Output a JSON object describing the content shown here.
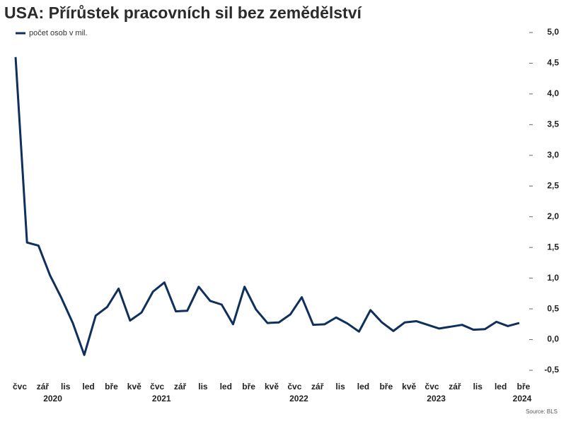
{
  "chart_data": {
    "type": "line",
    "title": "USA: Přírůstek pracovních sil bez zemědělství",
    "source": "Source: BLS",
    "categories": [
      "čvc",
      null,
      "zář",
      null,
      "lis",
      null,
      "led",
      null,
      "bře",
      null,
      "kvě",
      null,
      "čvc",
      null,
      "zář",
      null,
      "lis",
      null,
      "led",
      null,
      "bře",
      null,
      "kvě",
      null,
      "čvc",
      null,
      "zář",
      null,
      "lis",
      null,
      "led",
      null,
      "bře",
      null,
      "kvě",
      null,
      "čvc",
      null,
      "zář",
      null,
      "lis",
      null,
      "led",
      null,
      "bře"
    ],
    "year_groups": [
      {
        "label": "2020",
        "category": 3
      },
      {
        "label": "2021",
        "category": 12.5
      },
      {
        "label": "2022",
        "category": 24.5
      },
      {
        "label": "2023",
        "category": 36.5
      },
      {
        "label": "2024",
        "category": 44
      }
    ],
    "series": [
      {
        "name": "počet osob v mil.",
        "color": "#0f2f5c",
        "values": [
          4.6,
          1.58,
          1.53,
          1.05,
          0.68,
          0.27,
          -0.25,
          0.39,
          0.53,
          0.83,
          0.31,
          0.44,
          0.78,
          0.93,
          0.46,
          0.47,
          0.86,
          0.63,
          0.57,
          0.25,
          0.86,
          0.49,
          0.27,
          0.28,
          0.41,
          0.69,
          0.24,
          0.25,
          0.36,
          0.26,
          0.13,
          0.48,
          0.28,
          0.14,
          0.28,
          0.3,
          0.24,
          0.18,
          0.21,
          0.24,
          0.16,
          0.17,
          0.29,
          0.22,
          0.27
        ]
      }
    ],
    "ylim": [
      -0.5,
      5.0
    ],
    "yticks": [
      {
        "value": -0.5,
        "label": "-0,5"
      },
      {
        "value": 0,
        "label": "0,0"
      },
      {
        "value": 0.5,
        "label": "0,5"
      },
      {
        "value": 1.0,
        "label": "1,0"
      },
      {
        "value": 1.5,
        "label": "1,5"
      },
      {
        "value": 2.0,
        "label": "2,0"
      },
      {
        "value": 2.5,
        "label": "2,5"
      },
      {
        "value": 3.0,
        "label": "3,0"
      },
      {
        "value": 3.5,
        "label": "3,5"
      },
      {
        "value": 4.0,
        "label": "4,0"
      },
      {
        "value": 4.5,
        "label": "4,5"
      },
      {
        "value": 5.0,
        "label": "5,0"
      }
    ],
    "legend": "top-left",
    "grid": false
  }
}
